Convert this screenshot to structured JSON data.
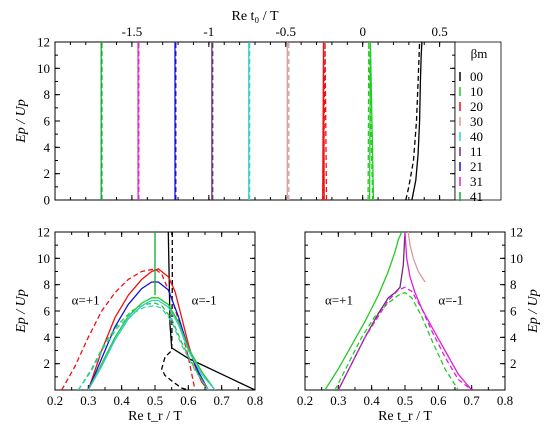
{
  "colors": {
    "00": "#000000",
    "10": "#22cc22",
    "20": "#ee1111",
    "30": "#d99a9a",
    "40": "#33cccc",
    "11": "#6b2f73",
    "21": "#1111dd",
    "31": "#dd22dd",
    "41": "#11aa33"
  },
  "chart_data": [
    {
      "type": "line",
      "xlabel": "Re t₀ / T",
      "ylabel": "Ep / Up",
      "xlim": [
        -2.0,
        0.6
      ],
      "ylim": [
        0,
        12
      ],
      "xticks": [
        -1.5,
        -1,
        -0.5,
        0,
        0.5
      ],
      "xtick_labels": [
        "-1.5",
        "-1",
        "-0.5",
        "0",
        "0.5"
      ],
      "yticks": [
        0,
        2,
        4,
        6,
        8,
        10,
        12
      ],
      "ytick_labels": [
        "0",
        "2",
        "4",
        "6",
        "8",
        "10",
        "12"
      ],
      "legend_title": "βm",
      "legend_position": "right",
      "series": [
        {
          "name": "00",
          "solid": {
            "x": [
              0.32,
              0.345,
              0.36,
              0.37,
              0.375,
              0.38,
              0.385
            ],
            "y": [
              0,
              1.5,
              3.5,
              6,
              9,
              11,
              12
            ]
          },
          "dashed": {
            "x": [
              0.28,
              0.3,
              0.33,
              0.35,
              0.36,
              0.37
            ],
            "y": [
              0,
              1,
              3,
              6,
              9,
              12
            ]
          }
        },
        {
          "name": "10",
          "solid": {
            "x": [
              0.045,
              0.05,
              0.07
            ],
            "y": [
              0,
              12,
              0
            ]
          },
          "dashed": {
            "x": [
              0.035,
              0.04,
              0.065
            ],
            "y": [
              0,
              12,
              0
            ]
          }
        },
        {
          "name": "20",
          "solid": {
            "x": [
              -0.25,
              -0.255,
              -0.26
            ],
            "y": [
              0,
              12,
              0
            ]
          },
          "dashed": {
            "x": [
              -0.235,
              -0.245,
              -0.255
            ],
            "y": [
              0,
              12,
              0
            ]
          }
        },
        {
          "name": "30",
          "solid": {
            "x": [
              -0.49,
              -0.49
            ],
            "y": [
              0,
              12
            ]
          },
          "dashed": {
            "x": [
              -0.48,
              -0.48
            ],
            "y": [
              0,
              12
            ]
          }
        },
        {
          "name": "40",
          "solid": {
            "x": [
              -0.74,
              -0.74
            ],
            "y": [
              0,
              12
            ]
          },
          "dashed": {
            "x": [
              -0.735,
              -0.735
            ],
            "y": [
              0,
              12
            ]
          }
        },
        {
          "name": "11",
          "solid": {
            "x": [
              -0.98,
              -0.98
            ],
            "y": [
              0,
              12
            ]
          },
          "dashed": {
            "x": [
              -0.975,
              -0.975
            ],
            "y": [
              0,
              12
            ]
          }
        },
        {
          "name": "21",
          "solid": {
            "x": [
              -1.22,
              -1.22
            ],
            "y": [
              0,
              12
            ]
          },
          "dashed": {
            "x": [
              -1.215,
              -1.215
            ],
            "y": [
              0,
              12
            ]
          }
        },
        {
          "name": "31",
          "solid": {
            "x": [
              -1.46,
              -1.46
            ],
            "y": [
              0,
              12
            ]
          },
          "dashed": {
            "x": [
              -1.455,
              -1.455
            ],
            "y": [
              0,
              12
            ]
          }
        },
        {
          "name": "41",
          "solid": {
            "x": [
              -1.7,
              -1.7
            ],
            "y": [
              0,
              12
            ]
          },
          "dashed": {
            "x": [
              -1.695,
              -1.695
            ],
            "y": [
              0,
              12
            ]
          }
        }
      ]
    },
    {
      "type": "line",
      "xlabel": "Re t_r / T",
      "ylabel": "Ep / Up",
      "xlim": [
        0.2,
        0.8
      ],
      "ylim": [
        0,
        12
      ],
      "xticks": [
        0.2,
        0.3,
        0.4,
        0.5,
        0.6,
        0.7,
        0.8
      ],
      "xtick_labels": [
        "0.2",
        "0.3",
        "0.4",
        "0.5",
        "0.6",
        "0.7",
        "0.8"
      ],
      "yticks": [
        2,
        4,
        6,
        8,
        10,
        12
      ],
      "ytick_labels": [
        "2",
        "4",
        "6",
        "8",
        "10",
        "12"
      ],
      "annotations": [
        "α=+1",
        "α=-1"
      ],
      "series": [
        {
          "name": "00",
          "solid": {
            "x": [
              0.54,
              0.543,
              0.545,
              0.55,
              0.6,
              0.7,
              0.8
            ],
            "y": [
              12,
              8,
              5,
              3.2,
              2.4,
              1.2,
              0
            ]
          },
          "dashed": {
            "x": [
              0.552,
              0.552,
              0.55,
              0.53,
              0.52,
              0.53,
              0.555,
              0.58,
              0.6
            ],
            "y": [
              12,
              8,
              3,
              2.5,
              1.6,
              1.1,
              0.6,
              0.15,
              0
            ]
          }
        },
        {
          "name": "20",
          "solid": {
            "x": [
              0.3,
              0.34,
              0.38,
              0.42,
              0.46,
              0.49,
              0.51,
              0.54,
              0.56,
              0.58,
              0.6,
              0.62,
              0.64,
              0.66
            ],
            "y": [
              0,
              3,
              5.5,
              7.2,
              8.4,
              9.0,
              9.2,
              8.6,
              7.5,
              5.5,
              3.5,
              1.8,
              0.6,
              0
            ]
          },
          "dashed": {
            "x": [
              0.22,
              0.26,
              0.3,
              0.34,
              0.38,
              0.42,
              0.46,
              0.5,
              0.52,
              0.55,
              0.58,
              0.6,
              0.62
            ],
            "y": [
              0,
              1.8,
              4.0,
              6.0,
              7.4,
              8.4,
              9.0,
              9.2,
              8.8,
              7.0,
              4.5,
              2.5,
              0
            ]
          }
        },
        {
          "name": "21",
          "solid": {
            "x": [
              0.3,
              0.34,
              0.38,
              0.42,
              0.46,
              0.49,
              0.51,
              0.54,
              0.57,
              0.6,
              0.63,
              0.66
            ],
            "y": [
              0,
              2.4,
              4.8,
              6.5,
              7.7,
              8.2,
              8.2,
              7.6,
              5.6,
              3.2,
              1.4,
              0
            ]
          }
        },
        {
          "name": "10",
          "solid": {
            "x": [
              0.3,
              0.34,
              0.38,
              0.42,
              0.46,
              0.49,
              0.51,
              0.54,
              0.57,
              0.6,
              0.64,
              0.68
            ],
            "y": [
              0,
              2.0,
              4.0,
              5.6,
              6.6,
              7.0,
              7.0,
              6.5,
              5.2,
              3.2,
              1.4,
              0
            ]
          },
          "dashed": {
            "x": [
              0.27,
              0.31,
              0.35,
              0.39,
              0.43,
              0.47,
              0.5,
              0.52,
              0.55,
              0.58,
              0.62,
              0.66
            ],
            "y": [
              0,
              1.6,
              3.6,
              5.0,
              6.0,
              6.5,
              6.6,
              6.4,
              5.4,
              3.6,
              1.6,
              0
            ]
          }
        },
        {
          "name": "40",
          "solid": {
            "x": [
              0.3,
              0.34,
              0.38,
              0.42,
              0.46,
              0.49,
              0.51,
              0.54,
              0.57,
              0.6,
              0.64,
              0.68
            ],
            "y": [
              0,
              1.8,
              3.8,
              5.4,
              6.4,
              6.8,
              6.8,
              6.3,
              5.0,
              3.0,
              1.2,
              0
            ]
          },
          "dashed": {
            "x": [
              0.27,
              0.31,
              0.35,
              0.39,
              0.43,
              0.47,
              0.5,
              0.52,
              0.55,
              0.58,
              0.62,
              0.66
            ],
            "y": [
              0,
              1.5,
              3.4,
              4.8,
              5.8,
              6.3,
              6.4,
              6.2,
              5.2,
              3.4,
              1.5,
              0
            ]
          }
        },
        {
          "name": "41",
          "solid": {
            "x": [
              0.5,
              0.5
            ],
            "y": [
              7.2,
              12
            ]
          }
        }
      ]
    },
    {
      "type": "line",
      "xlabel": "Re t_r / T",
      "ylabel": "Ep / Up",
      "xlim": [
        0.2,
        0.8
      ],
      "ylim": [
        0,
        12
      ],
      "xticks": [
        0.2,
        0.3,
        0.4,
        0.5,
        0.6,
        0.7,
        0.8
      ],
      "xtick_labels": [
        "0.2",
        "0.3",
        "0.4",
        "0.5",
        "0.6",
        "0.7",
        "0.8"
      ],
      "yticks": [
        2,
        4,
        6,
        8,
        10,
        12
      ],
      "ytick_labels": [
        "2",
        "4",
        "6",
        "8",
        "10",
        "12"
      ],
      "annotations": [
        "α=+1",
        "α=-1"
      ],
      "series": [
        {
          "name": "10",
          "solid": {
            "x": [
              0.26,
              0.3,
              0.34,
              0.38,
              0.42,
              0.45,
              0.47,
              0.48,
              0.49
            ],
            "y": [
              0,
              1.6,
              3.4,
              5.2,
              7.2,
              9.0,
              10.5,
              11.4,
              12
            ]
          },
          "dashed": {
            "x": [
              0.29,
              0.33,
              0.37,
              0.41,
              0.45,
              0.48,
              0.5,
              0.52,
              0.55,
              0.58,
              0.62,
              0.66
            ],
            "y": [
              0,
              2.0,
              4.0,
              5.6,
              6.6,
              7.2,
              7.4,
              7.0,
              5.6,
              3.8,
              1.6,
              0
            ]
          }
        },
        {
          "name": "11",
          "solid": {
            "x": [
              0.3,
              0.34,
              0.38,
              0.42,
              0.45,
              0.47,
              0.485,
              0.495,
              0.5
            ],
            "y": [
              0,
              2.0,
              4.0,
              5.8,
              7.0,
              7.4,
              7.8,
              9.5,
              12
            ]
          }
        },
        {
          "name": "31",
          "solid": {
            "x": [
              0.5,
              0.505,
              0.515,
              0.53,
              0.55,
              0.58,
              0.62,
              0.66,
              0.7
            ],
            "y": [
              12,
              10,
              8.6,
              7.4,
              6.2,
              4.8,
              3.0,
              1.2,
              0
            ]
          },
          "dashed": {
            "x": [
              0.3,
              0.34,
              0.38,
              0.42,
              0.45,
              0.48,
              0.5,
              0.52,
              0.55,
              0.58,
              0.62,
              0.66,
              0.7
            ],
            "y": [
              0,
              2.0,
              4.0,
              5.6,
              6.8,
              7.6,
              7.8,
              7.5,
              6.2,
              4.5,
              2.5,
              0.8,
              0
            ]
          }
        },
        {
          "name": "30",
          "solid": {
            "x": [
              0.51,
              0.515,
              0.525,
              0.54,
              0.56
            ],
            "y": [
              12,
              11,
              10,
              9,
              8.2
            ]
          }
        }
      ]
    }
  ]
}
